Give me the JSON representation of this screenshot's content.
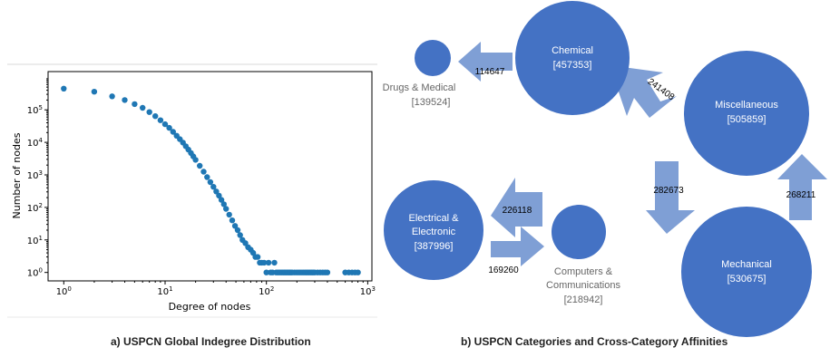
{
  "chart_data": [
    {
      "type": "scatter",
      "xlabel": "Degree of nodes",
      "ylabel": "Number of nodes",
      "xscale": "log",
      "yscale": "log",
      "xlim": [
        0.7,
        1100
      ],
      "ylim": [
        0.55,
        1500000
      ],
      "xticks": [
        {
          "v": 1,
          "label": "10",
          "exp": "0"
        },
        {
          "v": 10,
          "label": "10",
          "exp": "1"
        },
        {
          "v": 100,
          "label": "10",
          "exp": "2"
        },
        {
          "v": 1000,
          "label": "10",
          "exp": "3"
        }
      ],
      "yticks": [
        {
          "v": 1,
          "label": "10",
          "exp": "0"
        },
        {
          "v": 10,
          "label": "10",
          "exp": "1"
        },
        {
          "v": 100,
          "label": "10",
          "exp": "2"
        },
        {
          "v": 1000,
          "label": "10",
          "exp": "3"
        },
        {
          "v": 10000,
          "label": "10",
          "exp": "4"
        },
        {
          "v": 100000,
          "label": "10",
          "exp": "5"
        }
      ],
      "color": "#1f77b4",
      "grid": false,
      "x": [
        1,
        2,
        3,
        4,
        5,
        6,
        7,
        8,
        9,
        10,
        11,
        12,
        13,
        14,
        15,
        16,
        17,
        18,
        19,
        20,
        22,
        24,
        26,
        28,
        30,
        32,
        34,
        36,
        38,
        40,
        43,
        46,
        49,
        52,
        55,
        58,
        62,
        66,
        70,
        74,
        78,
        82,
        86,
        90,
        95,
        100,
        105,
        110,
        115,
        120,
        125,
        130,
        135,
        140,
        145,
        150,
        155,
        160,
        165,
        170,
        175,
        180,
        190,
        200,
        210,
        220,
        230,
        240,
        250,
        260,
        270,
        280,
        290,
        300,
        320,
        340,
        360,
        380,
        400,
        600,
        650,
        700,
        750,
        800
      ],
      "y": [
        450000,
        360000,
        260000,
        200000,
        150000,
        115000,
        85000,
        64000,
        48000,
        36000,
        28000,
        21000,
        16000,
        12500,
        9800,
        7600,
        6000,
        4700,
        3700,
        2900,
        1900,
        1250,
        850,
        600,
        430,
        310,
        230,
        170,
        125,
        90,
        60,
        40,
        27,
        20,
        14,
        10,
        8,
        6,
        5,
        4,
        3,
        3,
        2,
        2,
        2,
        1,
        2,
        1,
        1,
        2,
        1,
        1,
        1,
        1,
        1,
        1,
        1,
        1,
        1,
        1,
        1,
        1,
        1,
        1,
        1,
        1,
        1,
        1,
        1,
        1,
        1,
        1,
        1,
        1,
        1,
        1,
        1,
        1,
        1,
        1,
        1,
        1,
        1,
        1
      ]
    },
    {
      "type": "diagram",
      "nodes": [
        {
          "id": "chemical",
          "label": "Chemical",
          "value": "[457353]",
          "color": "#4472c4"
        },
        {
          "id": "drugs",
          "label": "Drugs & Medical",
          "value": "[139524]",
          "color": "#4472c4"
        },
        {
          "id": "misc",
          "label": "Miscellaneous",
          "value": "[505859]",
          "color": "#4472c4"
        },
        {
          "id": "mechanical",
          "label": "Mechanical",
          "value": "[530675]",
          "color": "#4472c4"
        },
        {
          "id": "electrical",
          "label": "Electrical & Electronic",
          "value": "[387996]",
          "color": "#4472c4"
        },
        {
          "id": "computers",
          "label": "Computers & Communications",
          "value": "[218942]",
          "color": "#4472c4"
        }
      ],
      "edges": [
        {
          "from": "chemical",
          "to": "drugs",
          "value": "114647"
        },
        {
          "from": "misc",
          "to": "chemical",
          "value": "241408"
        },
        {
          "from": "misc",
          "to": "mechanical",
          "value": "282673"
        },
        {
          "from": "mechanical",
          "to": "misc",
          "value": "268211"
        },
        {
          "from": "computers",
          "to": "electrical",
          "value": "226118"
        },
        {
          "from": "electrical",
          "to": "computers",
          "value": "169260"
        }
      ],
      "arrow_color": "#7f9fd5"
    }
  ],
  "captions": {
    "a": "a) USPCN Global Indegree Distribution",
    "b": "b) USPCN Categories and Cross-Category Affinities"
  }
}
